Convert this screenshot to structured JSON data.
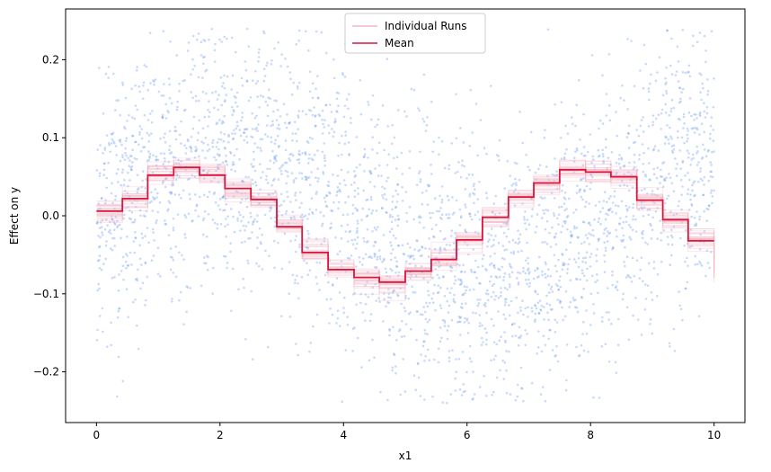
{
  "chart_data": {
    "type": "line",
    "xlabel": "x1",
    "ylabel": "Effect on y",
    "xlim": [
      -0.5,
      10.5
    ],
    "ylim": [
      -0.265,
      0.265
    ],
    "x_ticks": [
      0,
      2,
      4,
      6,
      8,
      10
    ],
    "x_tick_labels": [
      "0",
      "2",
      "4",
      "6",
      "8",
      "10"
    ],
    "y_ticks": [
      -0.2,
      -0.1,
      0.0,
      0.1,
      0.2
    ],
    "y_tick_labels": [
      "−0.2",
      "−0.1",
      "0.0",
      "0.1",
      "0.2"
    ],
    "grid": false,
    "legend": {
      "placement": "top-center",
      "entries": [
        {
          "label": "Individual Runs",
          "color": "#f4b8c6"
        },
        {
          "label": "Mean",
          "color": "#dc143c"
        }
      ]
    },
    "scatter": {
      "color": "#6495ed",
      "x_range": [
        0,
        10
      ],
      "y_range": [
        -0.24,
        0.24
      ],
      "count": 3000
    },
    "step_edges": [
      0,
      0.42,
      0.83,
      1.25,
      1.67,
      2.08,
      2.5,
      2.92,
      3.33,
      3.75,
      4.17,
      4.58,
      5.0,
      5.42,
      5.83,
      6.25,
      6.67,
      7.08,
      7.5,
      7.92,
      8.33,
      8.75,
      9.17,
      9.58,
      10.0
    ],
    "series": [
      {
        "name": "Mean",
        "color": "#dc143c",
        "values": [
          0.006,
          0.022,
          0.052,
          0.062,
          0.052,
          0.035,
          0.021,
          -0.014,
          -0.047,
          -0.069,
          -0.079,
          -0.085,
          -0.071,
          -0.056,
          -0.031,
          -0.002,
          0.024,
          0.042,
          0.059,
          0.056,
          0.05,
          0.02,
          -0.005,
          -0.032
        ]
      }
    ]
  }
}
